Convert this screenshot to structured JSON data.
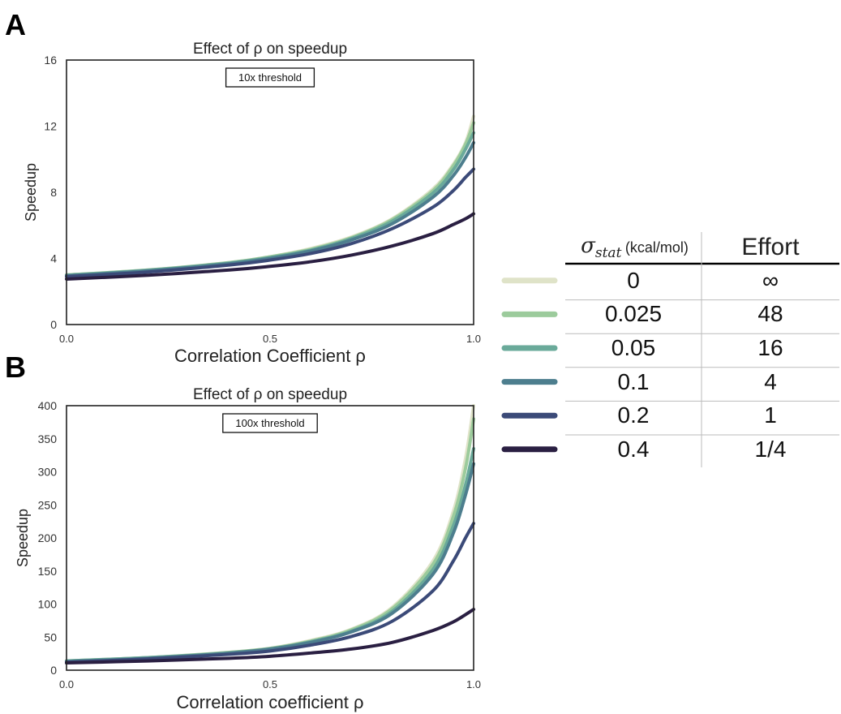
{
  "panels": [
    {
      "letter": "A"
    },
    {
      "letter": "B"
    }
  ],
  "legend_table": {
    "header_sigma": "σ",
    "header_sigma_sub": "stat",
    "header_unit": "(kcal/mol)",
    "header_effort": "Effort",
    "rows": [
      {
        "sigma": "0",
        "effort": "∞",
        "color": "#dfe3c8"
      },
      {
        "sigma": "0.025",
        "effort": "48",
        "color": "#9ccb9c"
      },
      {
        "sigma": "0.05",
        "effort": "16",
        "color": "#6aaa9a"
      },
      {
        "sigma": "0.1",
        "effort": "4",
        "color": "#4d7e8e"
      },
      {
        "sigma": "0.2",
        "effort": "1",
        "color": "#3b4a78"
      },
      {
        "sigma": "0.4",
        "effort": "1/4",
        "color": "#2a1f42"
      }
    ]
  },
  "chart_data": [
    {
      "type": "line",
      "title": "Effect of ρ on speedup",
      "annotation": "10x threshold",
      "xlabel": "Correlation Coefficient ρ",
      "ylabel": "Speedup",
      "xlim": [
        0.0,
        1.0
      ],
      "ylim": [
        0,
        16
      ],
      "xticks": [
        0.0,
        0.5,
        1.0
      ],
      "xtick_labels": [
        "0.0",
        "0.5",
        "1.0"
      ],
      "yticks": [
        0,
        4,
        8,
        12,
        16
      ],
      "ytick_labels": [
        "0",
        "4",
        "8",
        "12",
        "16"
      ],
      "grid": false,
      "x": [
        0.0,
        0.2,
        0.4,
        0.5,
        0.6,
        0.7,
        0.8,
        0.9,
        0.95,
        0.98,
        1.0
      ],
      "series": [
        {
          "name": "0",
          "color": "#dfe3c8",
          "values": [
            3.0,
            3.3,
            3.75,
            4.1,
            4.6,
            5.3,
            6.4,
            8.2,
            9.7,
            11.0,
            12.6
          ]
        },
        {
          "name": "0.025",
          "color": "#9ccb9c",
          "values": [
            3.0,
            3.3,
            3.75,
            4.1,
            4.55,
            5.25,
            6.35,
            8.1,
            9.6,
            10.9,
            12.2
          ]
        },
        {
          "name": "0.05",
          "color": "#6aaa9a",
          "values": [
            2.98,
            3.28,
            3.72,
            4.05,
            4.5,
            5.2,
            6.25,
            7.95,
            9.35,
            10.6,
            11.6
          ]
        },
        {
          "name": "0.1",
          "color": "#4d7e8e",
          "values": [
            2.95,
            3.25,
            3.68,
            4.0,
            4.45,
            5.12,
            6.1,
            7.7,
            9.0,
            10.1,
            11.0
          ]
        },
        {
          "name": "0.2",
          "color": "#3b4a78",
          "values": [
            2.9,
            3.18,
            3.6,
            3.9,
            4.3,
            4.9,
            5.8,
            7.1,
            8.1,
            8.9,
            9.4
          ]
        },
        {
          "name": "0.4",
          "color": "#2a1f42",
          "values": [
            2.75,
            2.98,
            3.3,
            3.52,
            3.8,
            4.2,
            4.75,
            5.5,
            6.05,
            6.4,
            6.7
          ]
        }
      ]
    },
    {
      "type": "line",
      "title": "Effect of ρ on speedup",
      "annotation": "100x threshold",
      "xlabel": "Correlation coefficient ρ",
      "ylabel": "Speedup",
      "xlim": [
        0.0,
        1.0
      ],
      "ylim": [
        0,
        400
      ],
      "xticks": [
        0.0,
        0.5,
        1.0
      ],
      "xtick_labels": [
        "0.0",
        "0.5",
        "1.0"
      ],
      "yticks": [
        0,
        50,
        100,
        150,
        200,
        250,
        300,
        350,
        400
      ],
      "ytick_labels": [
        "0",
        "50",
        "100",
        "150",
        "200",
        "250",
        "300",
        "350",
        "400"
      ],
      "grid": false,
      "x": [
        0.0,
        0.2,
        0.4,
        0.5,
        0.6,
        0.7,
        0.8,
        0.9,
        0.95,
        0.98,
        1.0
      ],
      "series": [
        {
          "name": "0",
          "color": "#dfe3c8",
          "values": [
            14,
            19,
            27,
            33,
            45,
            62,
            95,
            165,
            240,
            320,
            400
          ]
        },
        {
          "name": "0.025",
          "color": "#9ccb9c",
          "values": [
            14,
            19,
            27,
            33,
            44,
            61,
            93,
            160,
            232,
            305,
            380
          ]
        },
        {
          "name": "0.05",
          "color": "#6aaa9a",
          "values": [
            14,
            19,
            26,
            32,
            43,
            59,
            89,
            152,
            218,
            280,
            335
          ]
        },
        {
          "name": "0.1",
          "color": "#4d7e8e",
          "values": [
            13,
            18,
            26,
            32,
            42,
            58,
            86,
            145,
            207,
            265,
            312
          ]
        },
        {
          "name": "0.2",
          "color": "#3b4a78",
          "values": [
            12,
            17,
            24,
            29,
            38,
            51,
            74,
            120,
            165,
            200,
            222
          ]
        },
        {
          "name": "0.4",
          "color": "#2a1f42",
          "values": [
            11,
            14,
            18,
            21,
            26,
            32,
            42,
            60,
            73,
            84,
            92
          ]
        }
      ]
    }
  ]
}
